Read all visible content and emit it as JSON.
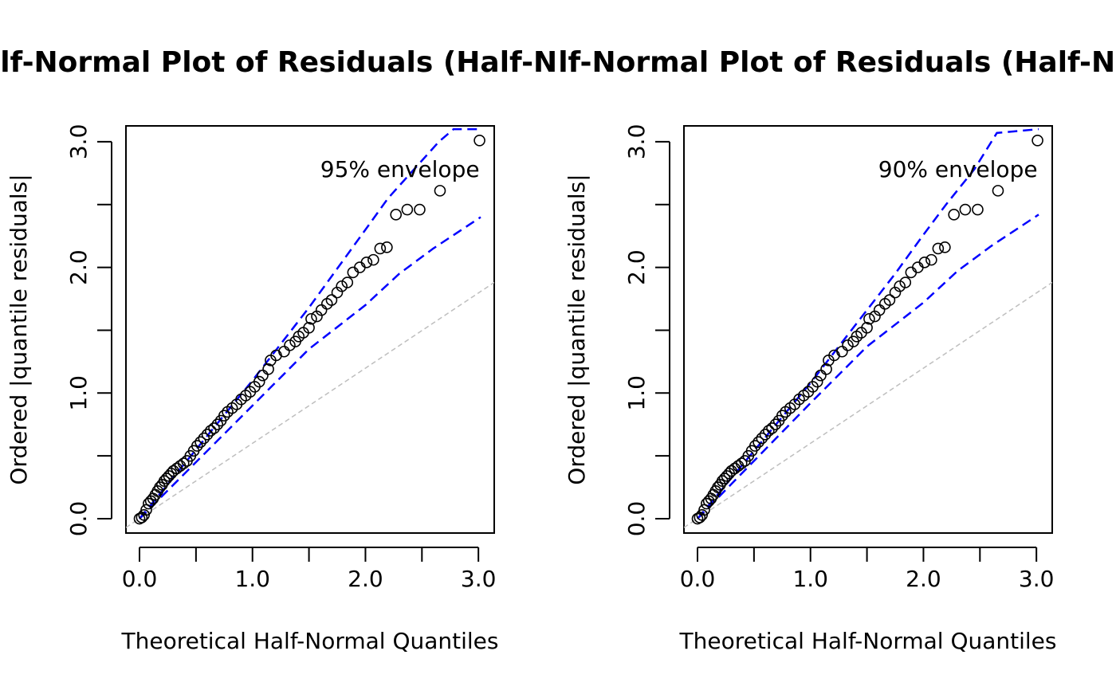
{
  "chart_data": [
    {
      "type": "scatter",
      "title": "Half-Normal Plot of Residuals (Half-Normal)",
      "xlabel": "Theoretical Half-Normal Quantiles",
      "ylabel": "Ordered |quantile residuals|",
      "xlim": [
        -0.12,
        3.14
      ],
      "ylim": [
        -0.114,
        3.126
      ],
      "xticks": [
        {
          "value": 0,
          "label": "0.0"
        },
        0.5,
        {
          "value": 1,
          "label": "1.0"
        },
        1.5,
        {
          "value": 2,
          "label": "2.0"
        },
        2.5,
        {
          "value": 3,
          "label": "3.0"
        }
      ],
      "yticks": [
        {
          "value": 0,
          "label": "0.0"
        },
        0.5,
        {
          "value": 1,
          "label": "1.0"
        },
        1.5,
        {
          "value": 2,
          "label": "2.0"
        },
        2.5,
        {
          "value": 3,
          "label": "3.0"
        }
      ],
      "annotation": {
        "text": "95% envelope",
        "x": 1.6,
        "y": 2.77,
        "color": "#0000ff"
      },
      "points": {
        "color": "#000000",
        "x": [
          0.0,
          0.02,
          0.04,
          0.06,
          0.08,
          0.1,
          0.12,
          0.14,
          0.16,
          0.18,
          0.2,
          0.22,
          0.24,
          0.26,
          0.28,
          0.3,
          0.33,
          0.36,
          0.39,
          0.42,
          0.45,
          0.48,
          0.51,
          0.54,
          0.57,
          0.6,
          0.63,
          0.66,
          0.69,
          0.72,
          0.75,
          0.78,
          0.82,
          0.86,
          0.9,
          0.94,
          0.98,
          1.02,
          1.06,
          1.09,
          1.14,
          1.16,
          1.21,
          1.28,
          1.33,
          1.38,
          1.41,
          1.45,
          1.5,
          1.52,
          1.57,
          1.61,
          1.66,
          1.7,
          1.75,
          1.79,
          1.84,
          1.89,
          1.95,
          2.01,
          2.07,
          2.13,
          2.19,
          2.27,
          2.37,
          2.48,
          2.66,
          3.01
        ],
        "y": [
          0.0,
          0.01,
          0.03,
          0.07,
          0.12,
          0.14,
          0.16,
          0.19,
          0.22,
          0.25,
          0.27,
          0.3,
          0.32,
          0.34,
          0.36,
          0.38,
          0.4,
          0.42,
          0.44,
          0.46,
          0.5,
          0.54,
          0.58,
          0.61,
          0.64,
          0.67,
          0.7,
          0.72,
          0.75,
          0.78,
          0.82,
          0.85,
          0.88,
          0.91,
          0.95,
          0.98,
          1.01,
          1.05,
          1.09,
          1.14,
          1.19,
          1.26,
          1.3,
          1.33,
          1.38,
          1.41,
          1.45,
          1.48,
          1.52,
          1.59,
          1.61,
          1.66,
          1.71,
          1.74,
          1.8,
          1.85,
          1.88,
          1.96,
          2.0,
          2.04,
          2.06,
          2.15,
          2.16,
          2.42,
          2.46,
          2.46,
          2.61,
          3.01
        ]
      },
      "envelope": {
        "color": "#0000ff",
        "upper": {
          "x": [
            0,
            0.5,
            1.0,
            1.5,
            1.75,
            2.0,
            2.2,
            2.45,
            2.65,
            2.78,
            3.02
          ],
          "y": [
            0,
            0.55,
            1.1,
            1.68,
            1.99,
            2.3,
            2.55,
            2.8,
            3.0,
            3.1,
            3.1
          ]
        },
        "lower": {
          "x": [
            0,
            0.5,
            1.0,
            1.5,
            2.0,
            2.3,
            2.6,
            3.02
          ],
          "y": [
            0,
            0.45,
            0.9,
            1.35,
            1.7,
            1.95,
            2.15,
            2.4
          ]
        }
      },
      "reference": {
        "color": "#bebebe",
        "x": [
          -0.12,
          3.14
        ],
        "y": [
          -0.07,
          1.88
        ]
      }
    },
    {
      "type": "scatter",
      "title": "Half-Normal Plot of Residuals (Half-Normal)",
      "xlabel": "Theoretical Half-Normal Quantiles",
      "ylabel": "Ordered |quantile residuals|",
      "xlim": [
        -0.12,
        3.14
      ],
      "ylim": [
        -0.114,
        3.126
      ],
      "xticks": [
        {
          "value": 0,
          "label": "0.0"
        },
        0.5,
        {
          "value": 1,
          "label": "1.0"
        },
        1.5,
        {
          "value": 2,
          "label": "2.0"
        },
        2.5,
        {
          "value": 3,
          "label": "3.0"
        }
      ],
      "yticks": [
        {
          "value": 0,
          "label": "0.0"
        },
        0.5,
        {
          "value": 1,
          "label": "1.0"
        },
        1.5,
        {
          "value": 2,
          "label": "2.0"
        },
        2.5,
        {
          "value": 3,
          "label": "3.0"
        }
      ],
      "annotation": {
        "text": "90% envelope",
        "x": 1.6,
        "y": 2.77,
        "color": "#0000ff"
      },
      "points": {
        "color": "#000000",
        "x": [
          0.0,
          0.02,
          0.04,
          0.06,
          0.08,
          0.1,
          0.12,
          0.14,
          0.16,
          0.18,
          0.2,
          0.22,
          0.24,
          0.26,
          0.28,
          0.3,
          0.33,
          0.36,
          0.39,
          0.42,
          0.45,
          0.48,
          0.51,
          0.54,
          0.57,
          0.6,
          0.63,
          0.66,
          0.69,
          0.72,
          0.75,
          0.78,
          0.82,
          0.86,
          0.9,
          0.94,
          0.98,
          1.02,
          1.06,
          1.09,
          1.14,
          1.16,
          1.21,
          1.28,
          1.33,
          1.38,
          1.41,
          1.45,
          1.5,
          1.52,
          1.57,
          1.61,
          1.66,
          1.7,
          1.75,
          1.79,
          1.84,
          1.89,
          1.95,
          2.01,
          2.07,
          2.13,
          2.19,
          2.27,
          2.37,
          2.48,
          2.66,
          3.01
        ],
        "y": [
          0.0,
          0.01,
          0.03,
          0.07,
          0.12,
          0.14,
          0.16,
          0.19,
          0.22,
          0.25,
          0.27,
          0.3,
          0.32,
          0.34,
          0.36,
          0.38,
          0.4,
          0.42,
          0.44,
          0.46,
          0.5,
          0.54,
          0.58,
          0.61,
          0.64,
          0.67,
          0.7,
          0.72,
          0.75,
          0.78,
          0.82,
          0.85,
          0.88,
          0.91,
          0.95,
          0.98,
          1.01,
          1.05,
          1.09,
          1.14,
          1.19,
          1.26,
          1.3,
          1.33,
          1.38,
          1.41,
          1.45,
          1.48,
          1.52,
          1.59,
          1.61,
          1.66,
          1.71,
          1.74,
          1.8,
          1.85,
          1.88,
          1.96,
          2.0,
          2.04,
          2.06,
          2.15,
          2.16,
          2.42,
          2.46,
          2.46,
          2.61,
          3.01
        ]
      },
      "envelope": {
        "color": "#0000ff",
        "upper": {
          "x": [
            0,
            0.5,
            1.0,
            1.5,
            1.75,
            2.0,
            2.2,
            2.45,
            2.65,
            3.02
          ],
          "y": [
            0,
            0.54,
            1.08,
            1.66,
            1.95,
            2.26,
            2.5,
            2.78,
            3.07,
            3.1
          ]
        },
        "lower": {
          "x": [
            0,
            0.5,
            1.0,
            1.5,
            2.0,
            2.3,
            2.6,
            3.02
          ],
          "y": [
            0,
            0.46,
            0.92,
            1.37,
            1.72,
            1.97,
            2.17,
            2.42
          ]
        }
      },
      "reference": {
        "color": "#bebebe",
        "x": [
          -0.12,
          3.14
        ],
        "y": [
          -0.07,
          1.88
        ]
      }
    }
  ]
}
